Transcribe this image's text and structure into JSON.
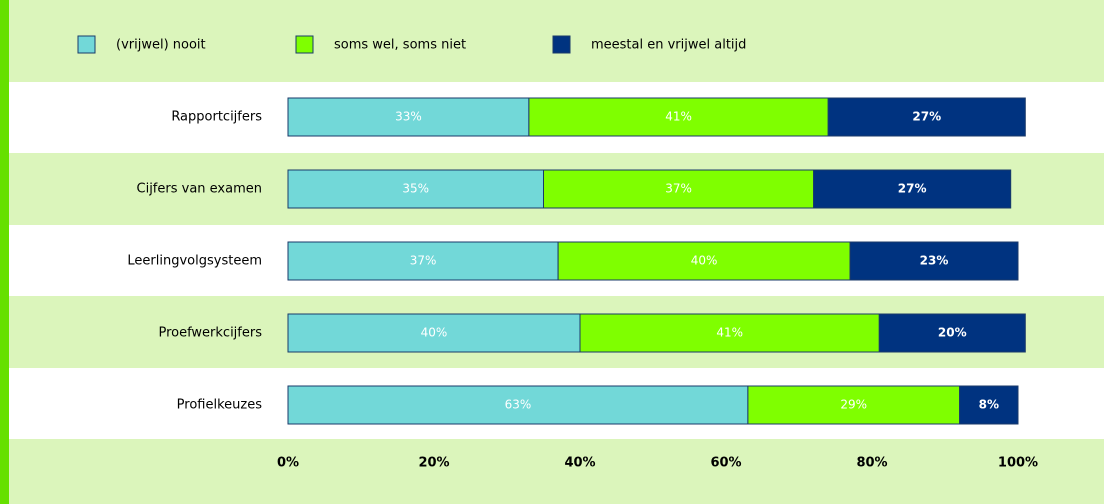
{
  "chart_data": {
    "type": "stacked-barh",
    "categories": [
      "Rapportcijfers",
      "Cijfers van examen",
      "Leerlingvolgsysteem",
      "Proefwerkcijfers",
      "Profielkeuzes"
    ],
    "series": [
      {
        "name": "(vrijwel) nooit",
        "color": "#72d8d8",
        "values": [
          33,
          35,
          37,
          40,
          63
        ],
        "value_labels": [
          "33%",
          "35%",
          "37%",
          "40%",
          "63%"
        ]
      },
      {
        "name": "soms wel, soms niet",
        "color": "#7fff00",
        "values": [
          41,
          37,
          40,
          41,
          29
        ],
        "value_labels": [
          "41%",
          "37%",
          "40%",
          "41%",
          "29%"
        ]
      },
      {
        "name": "meestal en vrijwel altijd",
        "color": "#003380",
        "values": [
          27,
          27,
          23,
          20,
          8
        ],
        "value_labels": [
          "27%",
          "27%",
          "23%",
          "20%",
          "8%"
        ]
      }
    ],
    "xlim": [
      0,
      100
    ],
    "xticks": [
      {
        "value": 0,
        "label": "0%"
      },
      {
        "value": 20,
        "label": "20%"
      },
      {
        "value": 40,
        "label": "40%"
      },
      {
        "value": 60,
        "label": "60%"
      },
      {
        "value": 80,
        "label": "80%"
      },
      {
        "value": 100,
        "label": "100%"
      }
    ],
    "legend": "top"
  }
}
